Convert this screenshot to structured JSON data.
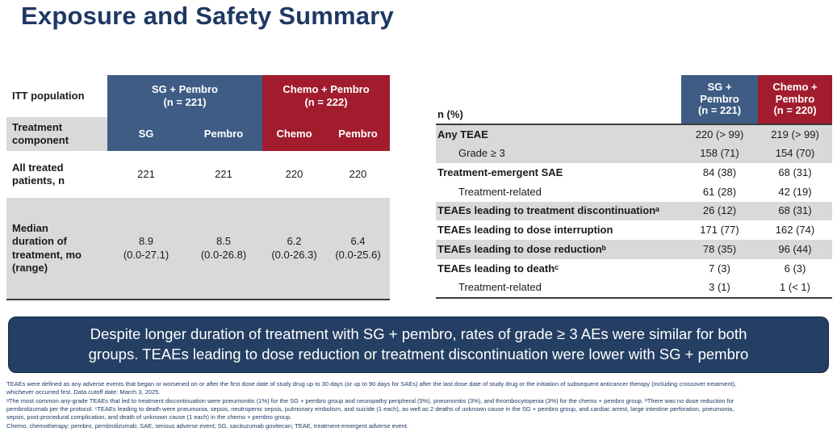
{
  "slide": {
    "title": "Exposure and Safety Summary"
  },
  "colors": {
    "title_navy": "#1F3864",
    "header_blue": "#3E5C84",
    "header_red": "#A11D2E",
    "row_gray": "#D9D9D9",
    "callout_bg": "#243F63"
  },
  "left_table": {
    "corner_label": "ITT population",
    "group_headers": [
      {
        "label": "SG + Pembro\n(n = 221)"
      },
      {
        "label": "Chemo + Pembro\n(n = 222)"
      }
    ],
    "component_label": "Treatment\ncomponent",
    "component_headers": [
      "SG",
      "Pembro",
      "Chemo",
      "Pembro"
    ],
    "rows": [
      {
        "label": "All treated\npatients, n",
        "values": [
          "221",
          "221",
          "220",
          "220"
        ]
      },
      {
        "label": "Median\nduration of\ntreatment, mo\n(range)",
        "values": [
          "8.9\n(0.0-27.1)",
          "8.5\n(0.0-26.8)",
          "6.2\n(0.0-26.3)",
          "6.4\n(0.0-25.6)"
        ]
      }
    ]
  },
  "right_table": {
    "corner_label": "n (%)",
    "col_headers": [
      "SG +\nPembro\n(n = 221)",
      "Chemo +\nPembro\n(n = 220)"
    ],
    "rows": [
      {
        "label": "Any TEAE",
        "sg": "220 (> 99)",
        "chemo": "219 (> 99)"
      },
      {
        "label": "Grade ≥ 3",
        "sg": "158 (71)",
        "chemo": "154 (70)"
      },
      {
        "label": "Treatment-emergent SAE",
        "sg": "84 (38)",
        "chemo": "68 (31)"
      },
      {
        "label": "Treatment-related",
        "sg": "61 (28)",
        "chemo": "42 (19)"
      },
      {
        "label": "TEAEs leading to treatment discontinuationᵃ",
        "sg": "26 (12)",
        "chemo": "68 (31)"
      },
      {
        "label": "TEAEs leading to dose interruption",
        "sg": "171 (77)",
        "chemo": "162 (74)"
      },
      {
        "label": "TEAEs leading to dose reductionᵇ",
        "sg": "78 (35)",
        "chemo": "96 (44)"
      },
      {
        "label": "TEAEs leading to deathᶜ",
        "sg": "7 (3)",
        "chemo": "6 (3)"
      },
      {
        "label": "Treatment-related",
        "sg": "3 (1)",
        "chemo": "1 (< 1)"
      }
    ]
  },
  "callout": {
    "text": "Despite longer duration of treatment with SG + pembro, rates of grade ≥ 3 AEs were similar for both\ngroups. TEAEs leading to dose reduction or treatment discontinuation were lower with SG + pembro"
  },
  "footnotes": {
    "lines": [
      "TEAEs were defined as any adverse events that began or worsened on or after the first dose date of study drug up to 30 days (or up to 90 days for SAEs) after the last dose date of study drug or the initiation of subsequent anticancer therapy (including crossover treatment),",
      "whichever occurred first. Data cutoff date: March 3, 2025.",
      "ᵃThe most common any-grade TEAEs that led to treatment discontinuation were pneumonitis (1%) for the SG + pembro group and neuropathy peripheral (5%), pneumonitis (3%), and thrombocytopenia (3%) for the chemo + pembro group. ᵇThere was no dose reduction for",
      "pembrolizumab per the protocol. ᶜTEAEs leading to death were pneumonia, sepsis, neutropenic sepsis, pulmonary embolism, and suicide (1 each), as well as 2 deaths of unknown cause in the SG + pembro group, and cardiac arrest, large intestine perforation, pneumonia,",
      "sepsis, post-procedural complication, and death of unknown cause (1 each) in the chemo + pembro group.",
      "Chemo, chemotherapy; pembro, pembrolizumab; SAE, serious adverse event; SG, sacituzumab govitecan; TEAE, treatment-emergent adverse event."
    ]
  }
}
